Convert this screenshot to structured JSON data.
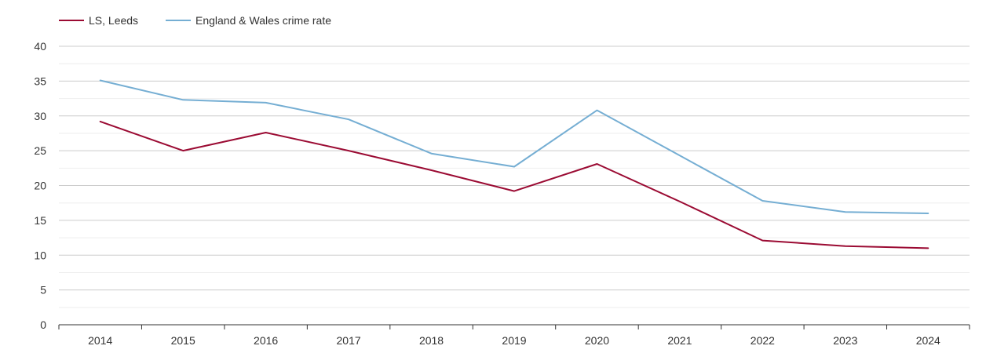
{
  "chart_data": {
    "type": "line",
    "title": "",
    "xlabel": "",
    "ylabel": "",
    "categories": [
      "2014",
      "2015",
      "2016",
      "2017",
      "2018",
      "2019",
      "2020",
      "2021",
      "2022",
      "2023",
      "2024"
    ],
    "ylim": [
      0,
      40
    ],
    "yticks": [
      "0",
      "5",
      "10",
      "15",
      "20",
      "25",
      "30",
      "35",
      "40"
    ],
    "grid": true,
    "legend_position": "top-left",
    "series": [
      {
        "name": "LS, Leeds",
        "color": "#9b0b33",
        "values": [
          29.2,
          25.0,
          27.6,
          25.0,
          22.2,
          19.2,
          23.1,
          17.7,
          12.1,
          11.3,
          11.0
        ]
      },
      {
        "name": "England & Wales crime rate",
        "color": "#75aed3",
        "values": [
          35.1,
          32.3,
          31.9,
          29.5,
          24.6,
          22.7,
          30.8,
          24.3,
          17.8,
          16.2,
          16.0
        ]
      }
    ]
  }
}
